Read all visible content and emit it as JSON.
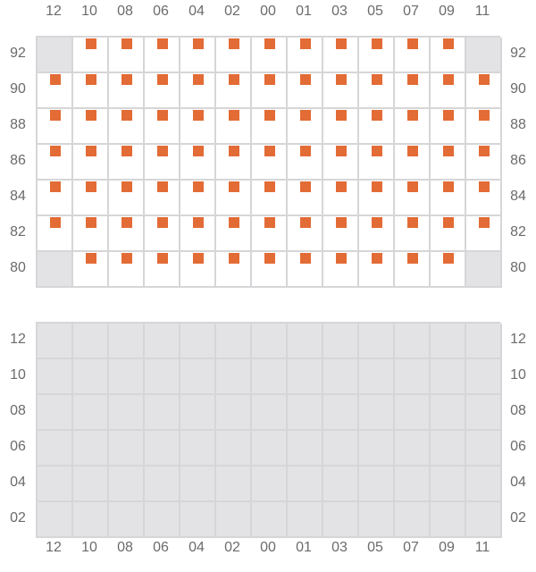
{
  "colors": {
    "marker": "#e36b35",
    "inactive": "#e3e3e5",
    "grid": "#d6d6d8"
  },
  "columns": [
    "12",
    "10",
    "08",
    "06",
    "04",
    "02",
    "00",
    "01",
    "03",
    "05",
    "07",
    "09",
    "11"
  ],
  "top_panel": {
    "rows": [
      "92",
      "90",
      "88",
      "86",
      "84",
      "82",
      "80"
    ],
    "cells": [
      [
        "inactive",
        "marked",
        "marked",
        "marked",
        "marked",
        "marked",
        "marked",
        "marked",
        "marked",
        "marked",
        "marked",
        "marked",
        "inactive"
      ],
      [
        "marked",
        "marked",
        "marked",
        "marked",
        "marked",
        "marked",
        "marked",
        "marked",
        "marked",
        "marked",
        "marked",
        "marked",
        "marked"
      ],
      [
        "marked",
        "marked",
        "marked",
        "marked",
        "marked",
        "marked",
        "marked",
        "marked",
        "marked",
        "marked",
        "marked",
        "marked",
        "marked"
      ],
      [
        "marked",
        "marked",
        "marked",
        "marked",
        "marked",
        "marked",
        "marked",
        "marked",
        "marked",
        "marked",
        "marked",
        "marked",
        "marked"
      ],
      [
        "marked",
        "marked",
        "marked",
        "marked",
        "marked",
        "marked",
        "marked",
        "marked",
        "marked",
        "marked",
        "marked",
        "marked",
        "marked"
      ],
      [
        "marked",
        "marked",
        "marked",
        "marked",
        "marked",
        "marked",
        "marked",
        "marked",
        "marked",
        "marked",
        "marked",
        "marked",
        "marked"
      ],
      [
        "inactive",
        "marked",
        "marked",
        "marked",
        "marked",
        "marked",
        "marked",
        "marked",
        "marked",
        "marked",
        "marked",
        "marked",
        "inactive"
      ]
    ]
  },
  "bottom_panel": {
    "rows": [
      "12",
      "10",
      "08",
      "06",
      "04",
      "02"
    ],
    "state": "inactive"
  }
}
